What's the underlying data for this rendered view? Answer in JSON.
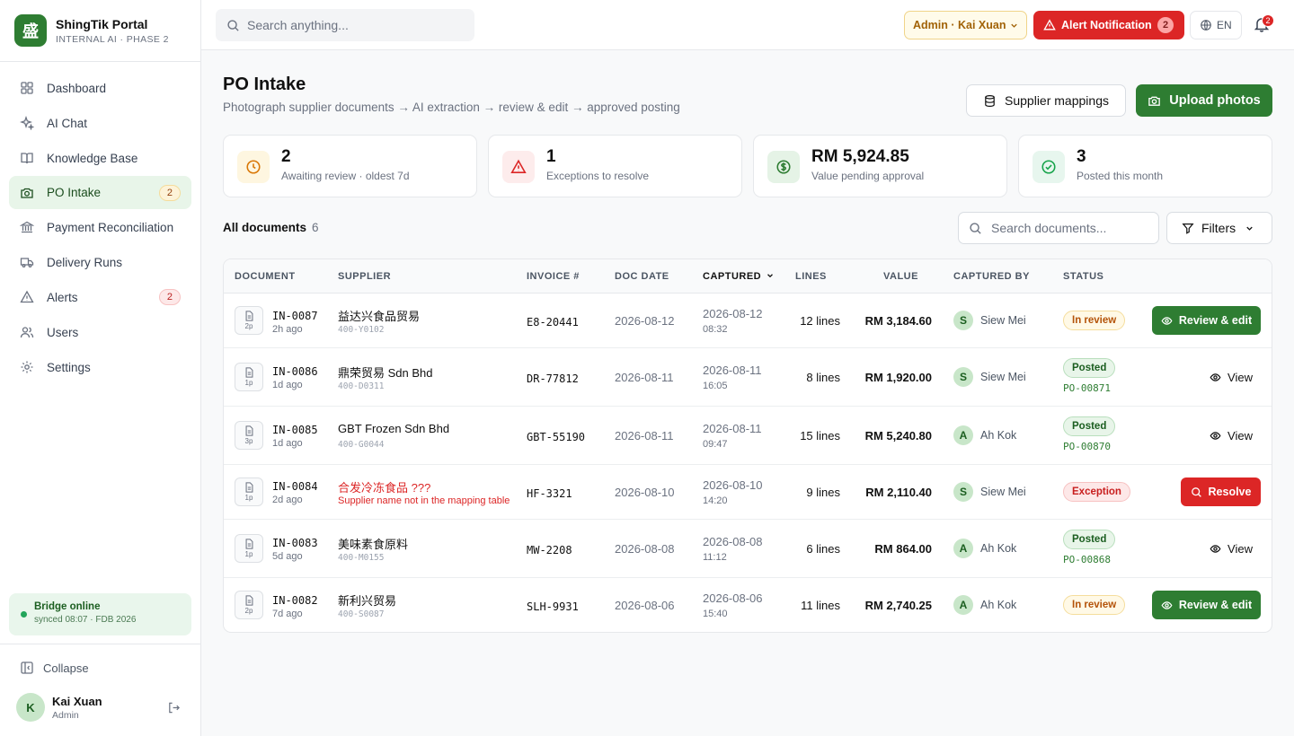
{
  "brand": {
    "logo": "盛",
    "name": "ShingTik Portal",
    "sub": "INTERNAL AI · PHASE 2"
  },
  "nav": [
    {
      "label": "Dashboard",
      "icon": "grid-icon"
    },
    {
      "label": "AI Chat",
      "icon": "sparkles-icon"
    },
    {
      "label": "Knowledge Base",
      "icon": "book-icon"
    },
    {
      "label": "PO Intake",
      "icon": "camera-icon",
      "badge": "2",
      "active": true
    },
    {
      "label": "Payment Reconciliation",
      "icon": "bank-icon"
    },
    {
      "label": "Delivery Runs",
      "icon": "truck-icon"
    },
    {
      "label": "Alerts",
      "icon": "alert-icon",
      "badge": "2"
    },
    {
      "label": "Users",
      "icon": "users-icon"
    },
    {
      "label": "Settings",
      "icon": "gear-icon"
    }
  ],
  "bridge": {
    "title": "Bridge online",
    "sub": "synced 08:07 · FDB 2026"
  },
  "sidebar_footer": {
    "collapse": "Collapse",
    "user_initial": "K",
    "user_name": "Kai Xuan",
    "user_role": "Admin"
  },
  "topbar": {
    "search_placeholder": "Search anything...",
    "admin_label": "Admin · Kai Xuan",
    "alert_label": "Alert Notification",
    "alert_count": "2",
    "lang": "EN",
    "bell_count": "2"
  },
  "page": {
    "title": "PO Intake",
    "subtitle": "Photograph supplier documents → AI extraction → review & edit → approved posting",
    "btn_mappings": "Supplier mappings",
    "btn_upload": "Upload photos"
  },
  "stats": [
    {
      "value": "2",
      "label": "Awaiting review · oldest 7d",
      "icon": "clock-icon",
      "color": "#f59e0b"
    },
    {
      "value": "1",
      "label": "Exceptions to resolve",
      "icon": "warning-icon",
      "color": "#dc2626"
    },
    {
      "value": "RM 5,924.85",
      "label": "Value pending approval",
      "icon": "dollar-icon",
      "color": "#2e7d32"
    },
    {
      "value": "3",
      "label": "Posted this month",
      "icon": "check-circle-icon",
      "color": "#16a34a"
    }
  ],
  "list": {
    "title": "All documents",
    "count": "6",
    "search_placeholder": "Search documents...",
    "filters": "Filters"
  },
  "table": {
    "headers": {
      "document": "DOCUMENT",
      "supplier": "SUPPLIER",
      "invoice": "INVOICE #",
      "doc_date": "DOC DATE",
      "captured": "CAPTURED",
      "lines": "LINES",
      "value": "VALUE",
      "captured_by": "CAPTURED BY",
      "status": "STATUS"
    },
    "rows": [
      {
        "pages": "2p",
        "id": "IN-0087",
        "age": "2h ago",
        "supplier": "益达兴食品贸易",
        "supplier_code": "400-Y0102",
        "invoice": "E8-20441",
        "doc_date": "2026-08-12",
        "cap_date": "2026-08-12",
        "cap_time": "08:32",
        "lines": "12 lines",
        "value": "RM 3,184.60",
        "by_initial": "S",
        "by": "Siew Mei",
        "status": "In review",
        "action": "Review & edit"
      },
      {
        "pages": "1p",
        "id": "IN-0086",
        "age": "1d ago",
        "supplier": "鼎荣贸易 Sdn Bhd",
        "supplier_code": "400-D0311",
        "invoice": "DR-77812",
        "doc_date": "2026-08-11",
        "cap_date": "2026-08-11",
        "cap_time": "16:05",
        "lines": "8 lines",
        "value": "RM 1,920.00",
        "by_initial": "S",
        "by": "Siew Mei",
        "status": "Posted",
        "po": "PO-00871",
        "action": "View"
      },
      {
        "pages": "3p",
        "id": "IN-0085",
        "age": "1d ago",
        "supplier": "GBT Frozen Sdn Bhd",
        "supplier_code": "400-G0044",
        "invoice": "GBT-55190",
        "doc_date": "2026-08-11",
        "cap_date": "2026-08-11",
        "cap_time": "09:47",
        "lines": "15 lines",
        "value": "RM 5,240.80",
        "by_initial": "A",
        "by": "Ah Kok",
        "status": "Posted",
        "po": "PO-00870",
        "action": "View"
      },
      {
        "pages": "1p",
        "id": "IN-0084",
        "age": "2d ago",
        "supplier": "合发冷冻食品 ???",
        "supplier_code": "Supplier name not in the mapping table",
        "invoice": "HF-3321",
        "doc_date": "2026-08-10",
        "cap_date": "2026-08-10",
        "cap_time": "14:20",
        "lines": "9 lines",
        "value": "RM 2,110.40",
        "by_initial": "S",
        "by": "Siew Mei",
        "status": "Exception",
        "action": "Resolve"
      },
      {
        "pages": "1p",
        "id": "IN-0083",
        "age": "5d ago",
        "supplier": "美味素食原料",
        "supplier_code": "400-M0155",
        "invoice": "MW-2208",
        "doc_date": "2026-08-08",
        "cap_date": "2026-08-08",
        "cap_time": "11:12",
        "lines": "6 lines",
        "value": "RM 864.00",
        "by_initial": "A",
        "by": "Ah Kok",
        "status": "Posted",
        "po": "PO-00868",
        "action": "View"
      },
      {
        "pages": "2p",
        "id": "IN-0082",
        "age": "7d ago",
        "supplier": "新利兴贸易",
        "supplier_code": "400-S0087",
        "invoice": "SLH-9931",
        "doc_date": "2026-08-06",
        "cap_date": "2026-08-06",
        "cap_time": "15:40",
        "lines": "11 lines",
        "value": "RM 2,740.25",
        "by_initial": "A",
        "by": "Ah Kok",
        "status": "In review",
        "action": "Review & edit"
      }
    ]
  }
}
